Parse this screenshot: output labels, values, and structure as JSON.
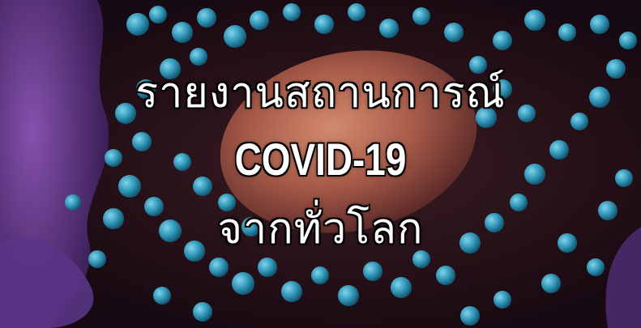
{
  "banner": {
    "line1": "รายงานสถานการณ์",
    "line2": "COVID-19",
    "line3": "จากทั่วโลก"
  },
  "colors": {
    "text": "#ffffff",
    "text_outline": "#000000",
    "virus_particles": "#3fa9c9",
    "cell_body": "#b86a55",
    "cell_membrane": "#6b3f8f",
    "background": "#231016"
  }
}
